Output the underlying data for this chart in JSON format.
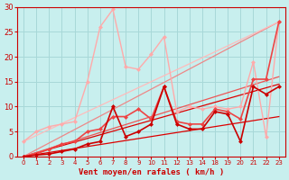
{
  "xlabel": "Vent moyen/en rafales ( km/h )",
  "xlim": [
    -0.5,
    23.5
  ],
  "ylim": [
    0,
    30
  ],
  "xtick_vals": [
    0,
    1,
    2,
    3,
    4,
    5,
    6,
    7,
    8,
    9,
    10,
    11,
    12,
    13,
    14,
    18,
    19,
    20,
    21,
    22,
    23
  ],
  "xtick_labels": [
    "0",
    "1",
    "2",
    "3",
    "4",
    "5",
    "6",
    "7",
    "8",
    "9",
    "10",
    "11",
    "12",
    "13",
    "14",
    "18",
    "19",
    "20",
    "21",
    "22",
    "23"
  ],
  "ytick_vals": [
    0,
    5,
    10,
    15,
    20,
    25,
    30
  ],
  "bg_color": "#c8efee",
  "grid_color": "#a8d8d8",
  "line_color_dark": "#cc0000",
  "line_color_mid": "#ee6666",
  "line_color_light": "#ffaaaa",
  "trend_lines": [
    {
      "x": [
        0,
        23
      ],
      "y": [
        0,
        14.5
      ],
      "color": "#dd0000",
      "lw": 0.9,
      "alpha": 1.0
    },
    {
      "x": [
        0,
        23
      ],
      "y": [
        0,
        8
      ],
      "color": "#dd0000",
      "lw": 0.9,
      "alpha": 1.0
    },
    {
      "x": [
        0,
        23
      ],
      "y": [
        0,
        16
      ],
      "color": "#ee5555",
      "lw": 0.9,
      "alpha": 1.0
    },
    {
      "x": [
        0,
        23
      ],
      "y": [
        0,
        27
      ],
      "color": "#ee8888",
      "lw": 0.9,
      "alpha": 1.0
    },
    {
      "x": [
        0,
        23
      ],
      "y": [
        3,
        27
      ],
      "color": "#ffbbbb",
      "lw": 0.9,
      "alpha": 1.0
    }
  ],
  "data_lines": [
    {
      "x": [
        0,
        1,
        2,
        3,
        4,
        5,
        6,
        7,
        8,
        9,
        10,
        11,
        12,
        13,
        14,
        18,
        19,
        20,
        21,
        22,
        23
      ],
      "y": [
        0,
        0.3,
        0.5,
        1,
        1.5,
        2.5,
        3,
        10,
        4,
        5,
        6.5,
        14,
        6.5,
        5.5,
        5.5,
        9,
        8.5,
        3,
        14,
        12.5,
        14
      ],
      "color": "#cc0000",
      "lw": 1.2,
      "ms": 2.5,
      "zorder": 4
    },
    {
      "x": [
        0,
        1,
        2,
        3,
        4,
        5,
        6,
        7,
        8,
        9,
        10,
        11,
        12,
        13,
        14,
        18,
        19,
        20,
        21,
        22,
        23
      ],
      "y": [
        0,
        0.5,
        1.5,
        2.5,
        3,
        5,
        5.5,
        8,
        8,
        9.5,
        7.5,
        14,
        7,
        6.5,
        6.5,
        9.5,
        9,
        7.5,
        15.5,
        15.5,
        27
      ],
      "color": "#ee4444",
      "lw": 1.2,
      "ms": 2.5,
      "zorder": 3
    },
    {
      "x": [
        0,
        1,
        2,
        3,
        4,
        5,
        6,
        7,
        8,
        9,
        10,
        11,
        12,
        13,
        14,
        18,
        19,
        20,
        21,
        22,
        23
      ],
      "y": [
        3,
        5,
        6,
        6.5,
        7,
        15,
        26,
        29.5,
        18,
        17.5,
        20.5,
        24,
        9,
        10,
        9.5,
        10,
        9.5,
        10,
        19,
        4,
        27
      ],
      "color": "#ffaaaa",
      "lw": 1.0,
      "ms": 2.5,
      "zorder": 2
    }
  ]
}
